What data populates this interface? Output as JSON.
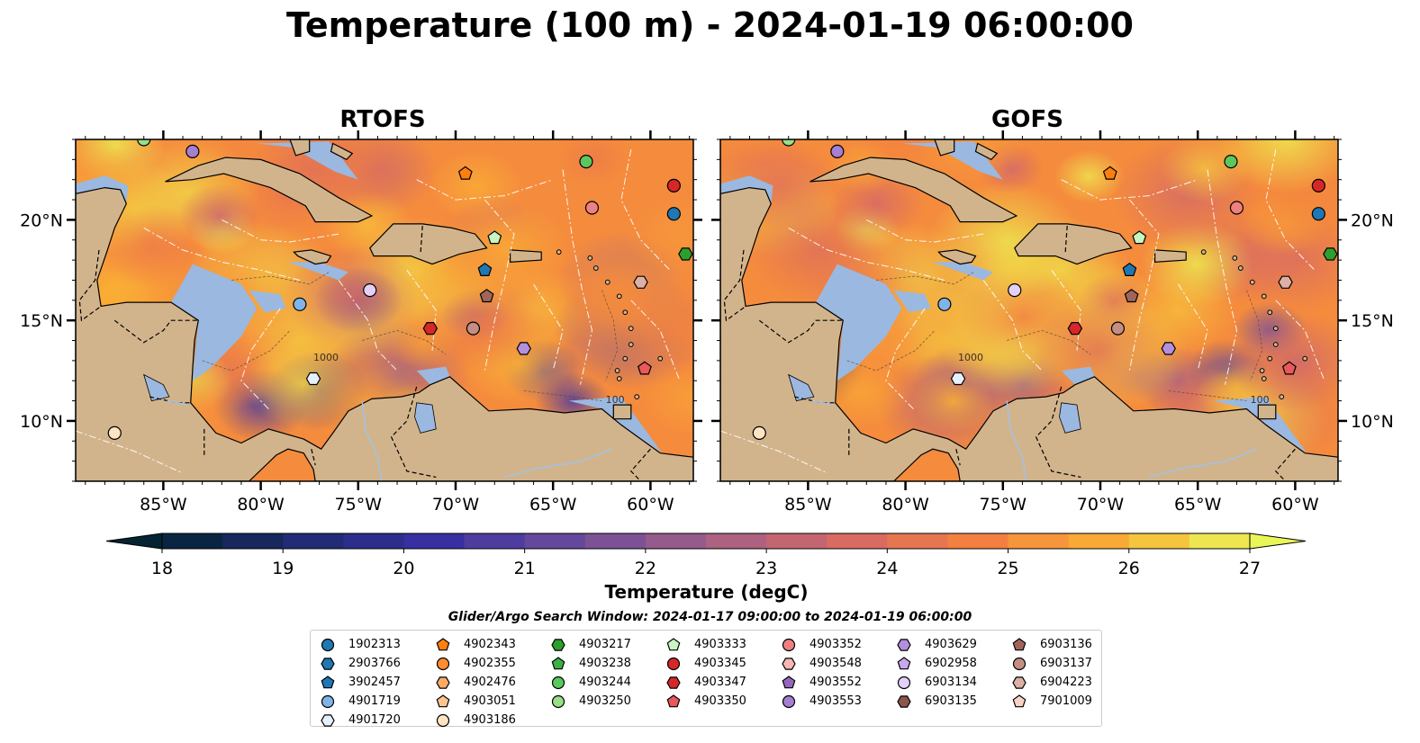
{
  "title": "Temperature (100 m) - 2024-01-19 06:00:00",
  "panels": [
    {
      "id": "rtofs",
      "title": "RTOFS"
    },
    {
      "id": "gofs",
      "title": "GOFS"
    }
  ],
  "map": {
    "lon_range": [
      -89.5,
      -57.8
    ],
    "lat_range": [
      7.0,
      24.0
    ],
    "lon_ticks": [
      -85,
      -80,
      -75,
      -70,
      -65,
      -60
    ],
    "lon_tick_labels": [
      "85°W",
      "80°W",
      "75°W",
      "70°W",
      "65°W",
      "60°W"
    ],
    "lat_ticks": [
      10,
      15,
      20
    ],
    "lat_tick_labels": [
      "10°N",
      "15°N",
      "20°N"
    ],
    "land_color": "#d2b48c",
    "shelf_color": "#9bb8e0",
    "contour_labels": [
      "1000",
      "100"
    ]
  },
  "colorbar": {
    "label": "Temperature (degC)",
    "min": 18,
    "max": 27,
    "step": 0.5,
    "tick_values": [
      18,
      19,
      20,
      21,
      22,
      23,
      24,
      25,
      26,
      27
    ],
    "tick_labels": [
      "18",
      "19",
      "20",
      "21",
      "22",
      "23",
      "24",
      "25",
      "26",
      "27"
    ],
    "colormap": "thermal",
    "extend": "both"
  },
  "legend": {
    "title": "Glider/Argo Search Window: 2024-01-17 09:00:00 to 2024-01-19 06:00:00",
    "columns": [
      [
        {
          "label": "1902313",
          "marker": "circle",
          "color": "#1f77b4",
          "lon": -58.8,
          "lat": 20.3
        },
        {
          "label": "2903766",
          "marker": "hexagon",
          "color": "#1f77b4",
          "lon": null,
          "lat": null
        },
        {
          "label": "3902457",
          "marker": "pentagon",
          "color": "#1f77b4",
          "lon": -68.5,
          "lat": 17.5
        },
        {
          "label": "4901719",
          "marker": "circle",
          "color": "#7fb4e6",
          "lon": -78.0,
          "lat": 15.8
        },
        {
          "label": "4901720",
          "marker": "hexagon",
          "color": "#e6f0fa",
          "lon": -77.3,
          "lat": 12.1
        }
      ],
      [
        {
          "label": "4902343",
          "marker": "pentagon",
          "color": "#ff7f0e",
          "lon": -69.5,
          "lat": 22.3
        },
        {
          "label": "4902355",
          "marker": "circle",
          "color": "#ff8c2e",
          "lon": null,
          "lat": null
        },
        {
          "label": "4902476",
          "marker": "hexagon",
          "color": "#ffaa66",
          "lon": null,
          "lat": null
        },
        {
          "label": "4903051",
          "marker": "pentagon",
          "color": "#ffc490",
          "lon": null,
          "lat": null
        },
        {
          "label": "4903186",
          "marker": "circle",
          "color": "#ffe4c4",
          "lon": -87.5,
          "lat": 9.4
        }
      ],
      [
        {
          "label": "4903217",
          "marker": "hexagon",
          "color": "#2ca02c",
          "lon": -58.2,
          "lat": 18.3
        },
        {
          "label": "4903238",
          "marker": "pentagon",
          "color": "#3cb043",
          "lon": null,
          "lat": null
        },
        {
          "label": "4903244",
          "marker": "circle",
          "color": "#5cc85c",
          "lon": -63.3,
          "lat": 22.9
        },
        {
          "label": "4903250",
          "marker": "circle",
          "color": "#98df8a",
          "lon": -86.0,
          "lat": 24.0
        }
      ],
      [
        {
          "label": "4903333",
          "marker": "pentagon",
          "color": "#c8f5c0",
          "lon": -68.0,
          "lat": 19.1
        },
        {
          "label": "4903345",
          "marker": "circle",
          "color": "#d62728",
          "lon": -58.8,
          "lat": 21.7
        },
        {
          "label": "4903347",
          "marker": "hexagon",
          "color": "#d62728",
          "lon": -71.3,
          "lat": 14.6
        },
        {
          "label": "4903350",
          "marker": "pentagon",
          "color": "#e85a5a",
          "lon": -60.3,
          "lat": 12.6
        }
      ],
      [
        {
          "label": "4903352",
          "marker": "circle",
          "color": "#f08080",
          "lon": -63.0,
          "lat": 20.6
        },
        {
          "label": "4903548",
          "marker": "hexagon",
          "color": "#f7b6b6",
          "lon": null,
          "lat": null
        },
        {
          "label": "4903552",
          "marker": "pentagon",
          "color": "#9467bd",
          "lon": null,
          "lat": null
        },
        {
          "label": "4903553",
          "marker": "circle",
          "color": "#a57fd1",
          "lon": -83.5,
          "lat": 23.4
        }
      ],
      [
        {
          "label": "4903629",
          "marker": "hexagon",
          "color": "#b48fe0",
          "lon": -66.5,
          "lat": 13.6
        },
        {
          "label": "6902958",
          "marker": "pentagon",
          "color": "#c5a8ee",
          "lon": null,
          "lat": null
        },
        {
          "label": "6903134",
          "marker": "circle",
          "color": "#e3d0f8",
          "lon": -74.4,
          "lat": 16.5
        },
        {
          "label": "6903135",
          "marker": "hexagon",
          "color": "#8c564b",
          "lon": null,
          "lat": null
        }
      ],
      [
        {
          "label": "6903136",
          "marker": "pentagon",
          "color": "#a0655a",
          "lon": -68.4,
          "lat": 16.2
        },
        {
          "label": "6903137",
          "marker": "circle",
          "color": "#c48e84",
          "lon": -69.1,
          "lat": 14.6
        },
        {
          "label": "6904223",
          "marker": "hexagon",
          "color": "#ddb0a5",
          "lon": -60.5,
          "lat": 16.9
        },
        {
          "label": "7901009",
          "marker": "pentagon",
          "color": "#f7d2c5",
          "lon": null,
          "lat": null
        }
      ]
    ]
  }
}
